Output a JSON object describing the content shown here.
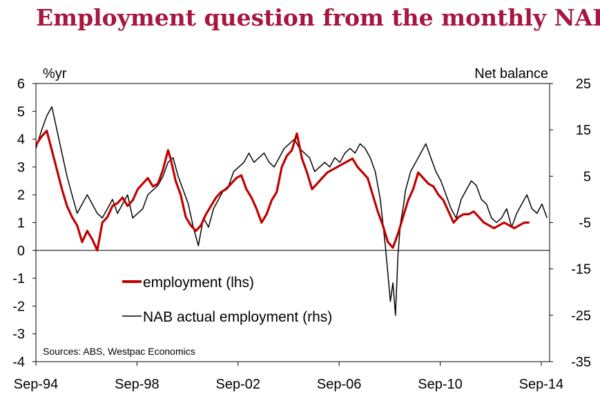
{
  "title": "Employment question from the monthly NAB",
  "chart_data": {
    "type": "line",
    "left_axis": {
      "label": "%yr",
      "min": -4,
      "max": 6,
      "ticks": [
        "6",
        "5",
        "4",
        "3",
        "2",
        "1",
        "0",
        "-1",
        "-2",
        "-3",
        "-4"
      ]
    },
    "right_axis": {
      "label": "Net balance",
      "min": -35,
      "max": 25,
      "ticks": [
        "25",
        "15",
        "5",
        "-5",
        "-15",
        "-25",
        "-35"
      ]
    },
    "x_axis": {
      "min": 1994.67,
      "max": 2015.0,
      "tick_labels": [
        "Sep-94",
        "Sep-98",
        "Sep-02",
        "Sep-06",
        "Sep-10",
        "Sep-14"
      ],
      "tick_values": [
        1994.67,
        1998.67,
        2002.67,
        2006.67,
        2010.67,
        2014.67
      ]
    },
    "source": "Sources: ABS, Westpac Economics",
    "legend_placement": "bottom-left",
    "series": [
      {
        "name": "employment (lhs)",
        "axis": "left",
        "color": "#c00000",
        "x": [
          1994.67,
          1994.9,
          1995.1,
          1995.3,
          1995.5,
          1995.7,
          1995.9,
          1996.1,
          1996.3,
          1996.5,
          1996.7,
          1996.9,
          1997.1,
          1997.3,
          1997.5,
          1997.7,
          1997.9,
          1998.1,
          1998.3,
          1998.5,
          1998.7,
          1998.9,
          1999.1,
          1999.3,
          1999.5,
          1999.7,
          1999.9,
          2000.0,
          2000.2,
          2000.4,
          2000.6,
          2000.8,
          2001.0,
          2001.2,
          2001.4,
          2001.6,
          2001.8,
          2002.0,
          2002.2,
          2002.4,
          2002.6,
          2002.8,
          2003.0,
          2003.2,
          2003.4,
          2003.6,
          2003.8,
          2004.0,
          2004.2,
          2004.4,
          2004.6,
          2004.8,
          2005.0,
          2005.2,
          2005.4,
          2005.6,
          2005.8,
          2006.0,
          2006.2,
          2006.4,
          2006.6,
          2006.8,
          2007.0,
          2007.2,
          2007.4,
          2007.6,
          2007.8,
          2008.0,
          2008.2,
          2008.4,
          2008.6,
          2008.8,
          2009.0,
          2009.2,
          2009.4,
          2009.6,
          2009.8,
          2010.0,
          2010.2,
          2010.4,
          2010.6,
          2010.8,
          2011.0,
          2011.2,
          2011.4,
          2011.6,
          2011.8,
          2012.0,
          2012.2,
          2012.4,
          2012.6,
          2012.8,
          2013.0,
          2013.2,
          2013.4,
          2013.6,
          2013.8,
          2014.0,
          2014.2
        ],
        "y": [
          3.8,
          4.1,
          4.3,
          3.6,
          2.9,
          2.2,
          1.6,
          1.2,
          0.9,
          0.3,
          0.7,
          0.4,
          0.0,
          1.0,
          1.2,
          1.6,
          1.7,
          1.9,
          1.6,
          1.8,
          2.2,
          2.4,
          2.6,
          2.3,
          2.4,
          2.9,
          3.6,
          3.3,
          2.5,
          2.0,
          1.2,
          0.9,
          0.7,
          0.9,
          1.3,
          1.6,
          1.9,
          2.1,
          2.2,
          2.4,
          2.6,
          2.7,
          2.2,
          1.9,
          1.5,
          1.0,
          1.3,
          1.8,
          2.1,
          3.0,
          3.4,
          3.6,
          4.2,
          3.3,
          2.8,
          2.2,
          2.4,
          2.6,
          2.8,
          2.9,
          3.0,
          3.1,
          3.2,
          3.3,
          3.0,
          2.8,
          2.6,
          2.0,
          1.4,
          0.9,
          0.3,
          0.1,
          0.6,
          1.2,
          1.8,
          2.2,
          2.8,
          2.6,
          2.4,
          2.3,
          2.0,
          1.8,
          1.4,
          1.0,
          1.2,
          1.3,
          1.3,
          1.4,
          1.2,
          1.0,
          0.9,
          0.8,
          0.9,
          1.0,
          0.9,
          0.8,
          0.9,
          1.0,
          1.0
        ]
      },
      {
        "name": "NAB actual employment (rhs)",
        "axis": "right",
        "color": "#000000",
        "x": [
          1994.67,
          1994.9,
          1995.1,
          1995.3,
          1995.5,
          1995.7,
          1995.9,
          1996.1,
          1996.3,
          1996.5,
          1996.7,
          1996.9,
          1997.1,
          1997.3,
          1997.5,
          1997.7,
          1997.9,
          1998.1,
          1998.3,
          1998.5,
          1998.7,
          1998.9,
          1999.1,
          1999.3,
          1999.5,
          1999.7,
          1999.9,
          2000.1,
          2000.3,
          2000.5,
          2000.7,
          2000.9,
          2001.1,
          2001.3,
          2001.5,
          2001.7,
          2001.9,
          2002.1,
          2002.3,
          2002.5,
          2002.7,
          2002.9,
          2003.1,
          2003.3,
          2003.5,
          2003.7,
          2003.9,
          2004.1,
          2004.3,
          2004.5,
          2004.7,
          2004.9,
          2005.1,
          2005.3,
          2005.5,
          2005.7,
          2005.9,
          2006.1,
          2006.3,
          2006.5,
          2006.7,
          2006.9,
          2007.1,
          2007.3,
          2007.5,
          2007.7,
          2007.9,
          2008.1,
          2008.3,
          2008.5,
          2008.7,
          2008.8,
          2008.9,
          2009.0,
          2009.1,
          2009.2,
          2009.3,
          2009.5,
          2009.7,
          2009.9,
          2010.1,
          2010.3,
          2010.5,
          2010.7,
          2010.9,
          2011.1,
          2011.3,
          2011.5,
          2011.7,
          2011.9,
          2012.1,
          2012.3,
          2012.5,
          2012.7,
          2012.9,
          2013.1,
          2013.3,
          2013.5,
          2013.7,
          2013.9,
          2014.1,
          2014.3,
          2014.5,
          2014.7,
          2014.9
        ],
        "y": [
          11,
          15,
          18,
          20,
          15,
          10,
          5,
          1,
          -3,
          -1,
          1,
          -1,
          -3,
          -4,
          -2,
          0,
          -3,
          -1,
          1,
          -4,
          -3,
          -2,
          1,
          2,
          3,
          5,
          8,
          9,
          5,
          2,
          -1,
          -6,
          -10,
          -4,
          -6,
          -2,
          0,
          2,
          3,
          6,
          7,
          8,
          10,
          8,
          9,
          10,
          8,
          7,
          9,
          11,
          12,
          13,
          11,
          10,
          9,
          6,
          7,
          8,
          7,
          9,
          8,
          10,
          11,
          10,
          12,
          11,
          9,
          6,
          0,
          -10,
          -22,
          -18,
          -25,
          -12,
          -5,
          -2,
          2,
          6,
          8,
          10,
          12,
          9,
          6,
          4,
          1,
          -2,
          -4,
          0,
          2,
          4,
          3,
          0,
          -1,
          -4,
          -5,
          -4,
          -2,
          -6,
          -3,
          -1,
          1,
          -2,
          -3,
          -1,
          -4
        ]
      }
    ]
  }
}
